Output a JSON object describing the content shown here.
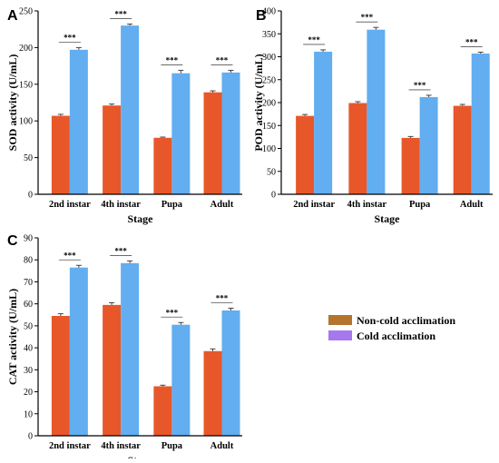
{
  "colors": {
    "non_cold": "#e8572a",
    "cold": "#62aef0",
    "error": "#444444"
  },
  "legend": [
    {
      "label": "Non-cold acclimation",
      "color": "#b5742e"
    },
    {
      "label": "Cold acclimation",
      "color": "#a678ee"
    }
  ],
  "chart_data": [
    {
      "panel": "A",
      "type": "bar",
      "categories": [
        "2nd instar",
        "4th instar",
        "Pupa",
        "Adult"
      ],
      "series": [
        {
          "name": "Non-cold acclimation",
          "values": [
            107,
            121,
            77,
            139
          ],
          "errors": [
            2,
            2,
            1,
            2
          ]
        },
        {
          "name": "Cold acclimation",
          "values": [
            197,
            230,
            165,
            166
          ],
          "errors": [
            3,
            2,
            4,
            3
          ]
        }
      ],
      "significance": [
        "***",
        "***",
        "***",
        "***"
      ],
      "xlabel": "Stage",
      "ylabel": "SOD activity (U/mL)",
      "ylim": [
        0,
        250
      ],
      "yticks": [
        0,
        50,
        100,
        150,
        200,
        250
      ]
    },
    {
      "panel": "B",
      "type": "bar",
      "categories": [
        "2nd instar",
        "4th instar",
        "Pupa",
        "Adult"
      ],
      "series": [
        {
          "name": "Non-cold acclimation",
          "values": [
            171,
            199,
            123,
            193
          ],
          "errors": [
            3,
            3,
            3,
            3
          ]
        },
        {
          "name": "Cold acclimation",
          "values": [
            311,
            359,
            212,
            307
          ],
          "errors": [
            4,
            5,
            4,
            3
          ]
        }
      ],
      "significance": [
        "***",
        "***",
        "***",
        "***"
      ],
      "xlabel": "Stage",
      "ylabel": "POD activity (U/mL)",
      "ylim": [
        0,
        400
      ],
      "yticks": [
        0,
        50,
        100,
        150,
        200,
        250,
        300,
        350,
        400
      ]
    },
    {
      "panel": "C",
      "type": "bar",
      "categories": [
        "2nd instar",
        "4th instar",
        "Pupa",
        "Adult"
      ],
      "series": [
        {
          "name": "Non-cold acclimation",
          "values": [
            54.5,
            59.5,
            22.5,
            38.5
          ],
          "errors": [
            1,
            1,
            0.5,
            1
          ]
        },
        {
          "name": "Cold acclimation",
          "values": [
            76.5,
            78.5,
            50.5,
            57
          ],
          "errors": [
            1,
            1,
            1,
            1
          ]
        }
      ],
      "significance": [
        "***",
        "***",
        "***",
        "***"
      ],
      "xlabel": "Stage",
      "ylabel": "CAT activity (U/mL)",
      "ylim": [
        0,
        90
      ],
      "yticks": [
        0,
        10,
        20,
        30,
        40,
        50,
        60,
        70,
        80,
        90
      ]
    }
  ]
}
